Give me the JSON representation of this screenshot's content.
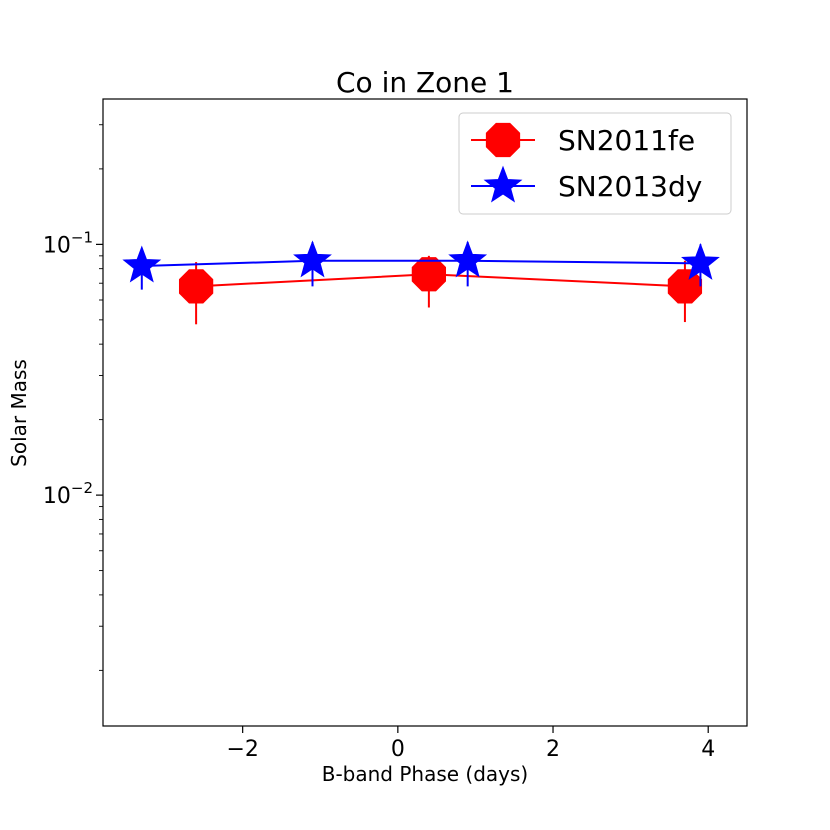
{
  "chart_data": {
    "type": "line",
    "title": "Co in Zone 1",
    "xlabel": "B-band Phase (days)",
    "ylabel": "Solar Mass",
    "xlim": [
      -3.8,
      4.5
    ],
    "ylim": [
      0.0012,
      0.38
    ],
    "yscale": "log",
    "xticks": [
      -2,
      0,
      2,
      4
    ],
    "xtick_labels": [
      "−2",
      "0",
      "2",
      "4"
    ],
    "ytick_major": [
      0.01,
      0.1
    ],
    "ytick_labels": [
      {
        "base": "10",
        "exp": "−2"
      },
      {
        "base": "10",
        "exp": "−1"
      }
    ],
    "legend_position": "top-right",
    "grid": false,
    "series": [
      {
        "name": "SN2011fe",
        "color": "#ff0000",
        "marker": "octagon",
        "x": [
          -2.6,
          0.4,
          3.7
        ],
        "y": [
          0.068,
          0.076,
          0.068
        ],
        "yerr_low": [
          0.048,
          0.056,
          0.049
        ],
        "yerr_high": [
          0.085,
          0.09,
          0.086
        ]
      },
      {
        "name": "SN2013dy",
        "color": "#0000ff",
        "marker": "star",
        "x": [
          -3.3,
          -1.1,
          0.9,
          3.9
        ],
        "y": [
          0.082,
          0.086,
          0.086,
          0.084
        ],
        "yerr_low": [
          0.066,
          0.068,
          0.068,
          0.068
        ],
        "yerr_high": [
          0.092,
          0.102,
          0.102,
          0.1
        ]
      }
    ]
  }
}
